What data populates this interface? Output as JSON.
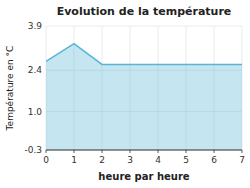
{
  "chart_data": {
    "type": "area",
    "title": "Evolution de la température",
    "xlabel": "heure par heure",
    "ylabel": "Température en °C",
    "x": [
      0,
      1,
      2,
      3,
      4,
      5,
      6,
      7
    ],
    "values": [
      2.7,
      3.3,
      2.6,
      2.6,
      2.6,
      2.6,
      2.6,
      2.6
    ],
    "color": "#5ab4d6",
    "xlim": [
      0,
      7
    ],
    "ylim": [
      -0.3,
      3.9
    ],
    "xticks": [
      0,
      1,
      2,
      3,
      4,
      5,
      6,
      7
    ],
    "yticks": [
      -0.3,
      {
        "value": 1.0,
        "label": "1.0"
      },
      2.4,
      3.9
    ],
    "grid": true
  }
}
